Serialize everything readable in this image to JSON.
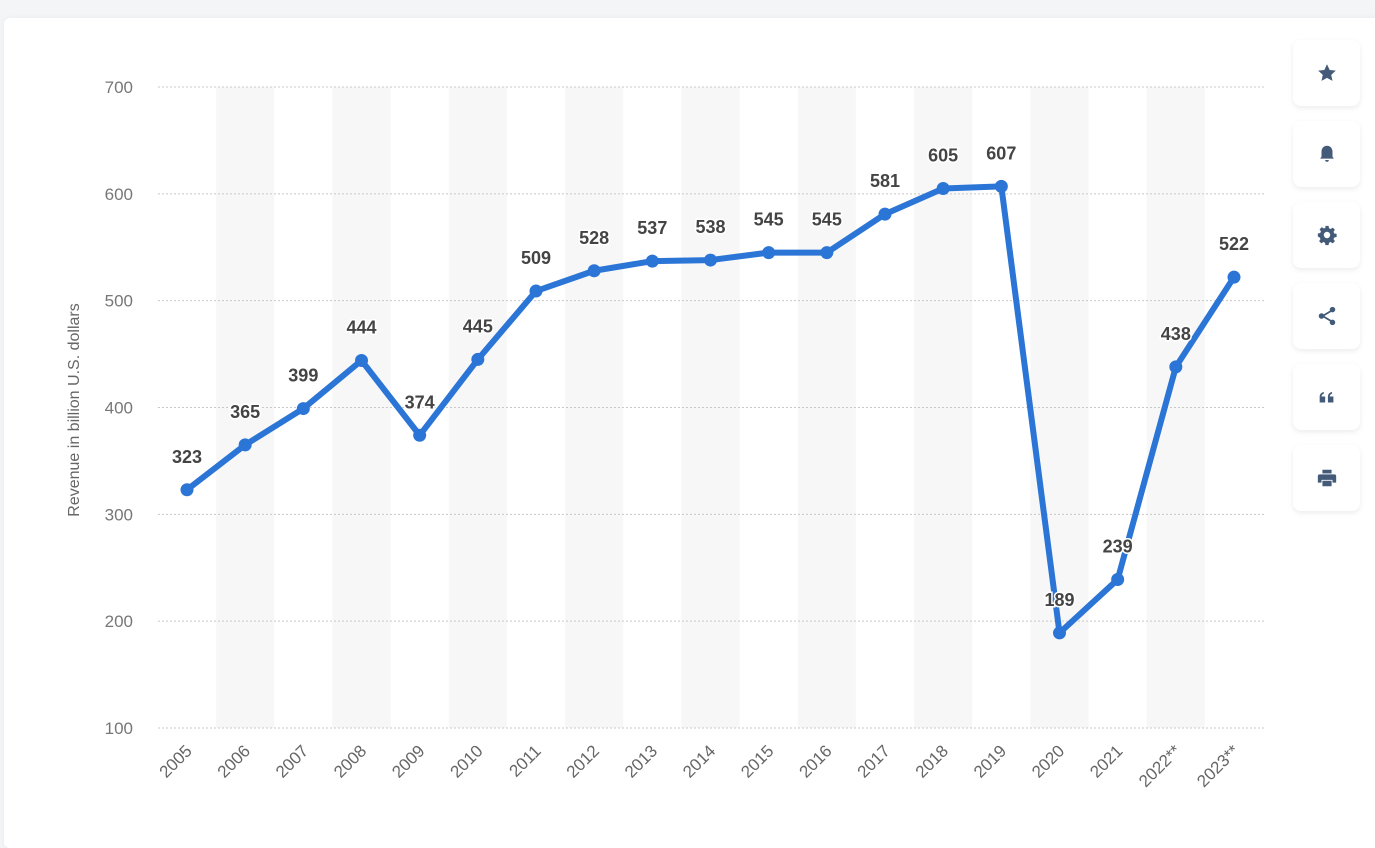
{
  "chart_data": {
    "type": "line",
    "title": "",
    "xlabel": "",
    "ylabel": "Revenue in billion U.S. dollars",
    "categories": [
      "2005",
      "2006",
      "2007",
      "2008",
      "2009",
      "2010",
      "2011",
      "2012",
      "2013",
      "2014",
      "2015",
      "2016",
      "2017",
      "2018",
      "2019",
      "2020",
      "2021",
      "2022**",
      "2023**"
    ],
    "series": [
      {
        "name": "Revenue",
        "values": [
          323,
          365,
          399,
          444,
          374,
          445,
          509,
          528,
          537,
          538,
          545,
          545,
          581,
          605,
          607,
          189,
          239,
          438,
          522
        ]
      }
    ],
    "ylim": [
      100,
      700
    ],
    "yticks": [
      100,
      200,
      300,
      400,
      500,
      600,
      700
    ],
    "grid": true,
    "legend": "none",
    "data_labels": true
  },
  "colors": {
    "line": "#2b75d6",
    "band": "#f7f7f7",
    "grid": "#c8c8c8",
    "icon": "#435b79"
  },
  "toolbar": {
    "buttons": [
      {
        "name": "favorite-button",
        "icon": "star-icon"
      },
      {
        "name": "notification-button",
        "icon": "bell-icon"
      },
      {
        "name": "settings-button",
        "icon": "gear-icon"
      },
      {
        "name": "share-button",
        "icon": "share-icon"
      },
      {
        "name": "cite-button",
        "icon": "quote-icon"
      },
      {
        "name": "print-button",
        "icon": "printer-icon"
      }
    ]
  }
}
